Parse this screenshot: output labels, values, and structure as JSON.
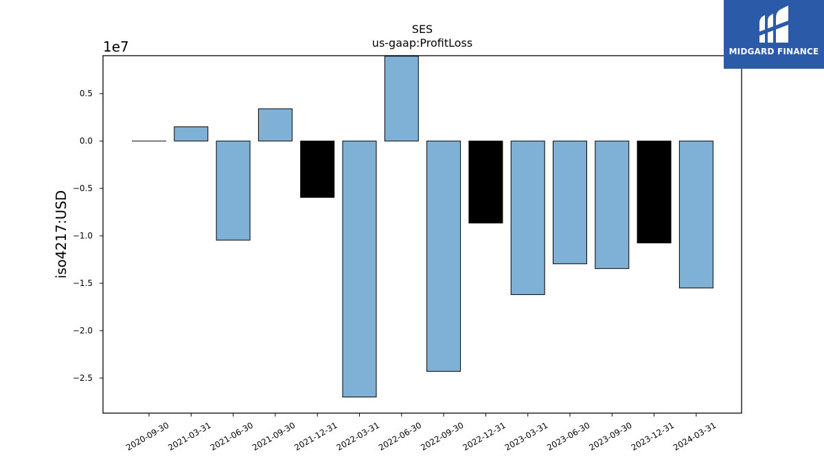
{
  "chart_data": {
    "type": "bar",
    "title": "SES",
    "subtitle": "us-gaap:ProfitLoss",
    "ylabel": "iso4217:USD",
    "y_scale_label": "1e7",
    "y_scale": 10000000,
    "ylim": [
      -2.87,
      0.9
    ],
    "grid": false,
    "yticks": [
      {
        "value": 0.5,
        "label": "0.5"
      },
      {
        "value": 0.0,
        "label": "0.0"
      },
      {
        "value": -0.5,
        "label": "−0.5"
      },
      {
        "value": -1.0,
        "label": "−1.0"
      },
      {
        "value": -1.5,
        "label": "−1.5"
      },
      {
        "value": -2.0,
        "label": "−2.0"
      },
      {
        "value": -2.5,
        "label": "−2.5"
      }
    ],
    "categories": [
      "2020-09-30",
      "2021-03-31",
      "2021-06-30",
      "2021-09-30",
      "2021-12-31",
      "2022-03-31",
      "2022-06-30",
      "2022-09-30",
      "2022-12-31",
      "2023-03-31",
      "2023-06-30",
      "2023-09-30",
      "2023-12-31",
      "2024-03-31"
    ],
    "values": [
      0,
      1500000,
      -10450000,
      3400000,
      -5950000,
      -27000000,
      8950000,
      -24300000,
      -8650000,
      -16200000,
      -12950000,
      -13450000,
      -10750000,
      -15500000
    ],
    "bar_colors": [
      "#7fb0d5",
      "#7fb0d5",
      "#7fb0d5",
      "#7fb0d5",
      "#000000",
      "#7fb0d5",
      "#7fb0d5",
      "#7fb0d5",
      "#000000",
      "#7fb0d5",
      "#7fb0d5",
      "#7fb0d5",
      "#000000",
      "#7fb0d5"
    ]
  },
  "logo": {
    "text": "MIDGARD FINANCE",
    "background": "#2b5aa8"
  }
}
